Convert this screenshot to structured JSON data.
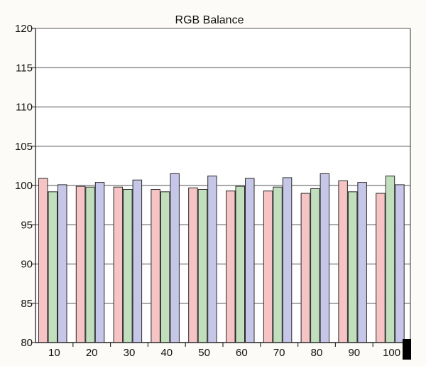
{
  "chart_data": {
    "type": "bar",
    "title": "RGB Balance",
    "xlabel": "",
    "ylabel": "",
    "ylim": [
      80,
      120
    ],
    "yticks": [
      "120",
      "115",
      "110",
      "105",
      "100",
      "95",
      "90",
      "85",
      "80"
    ],
    "categories": [
      "10",
      "20",
      "30",
      "40",
      "50",
      "60",
      "70",
      "80",
      "90",
      "100"
    ],
    "grid": true,
    "legend": "none",
    "series": [
      {
        "color": "#f6c4c4",
        "values": [
          100.9,
          99.9,
          99.8,
          99.5,
          99.7,
          99.3,
          99.3,
          99.0,
          100.6,
          99.0
        ]
      },
      {
        "color": "#c2dfbd",
        "values": [
          99.2,
          99.8,
          99.5,
          99.2,
          99.5,
          99.9,
          99.8,
          99.6,
          99.2,
          101.2
        ]
      },
      {
        "color": "#c6c6e8",
        "values": [
          100.1,
          100.4,
          100.7,
          101.5,
          101.2,
          100.9,
          101.0,
          101.5,
          100.4,
          100.1
        ]
      }
    ]
  }
}
